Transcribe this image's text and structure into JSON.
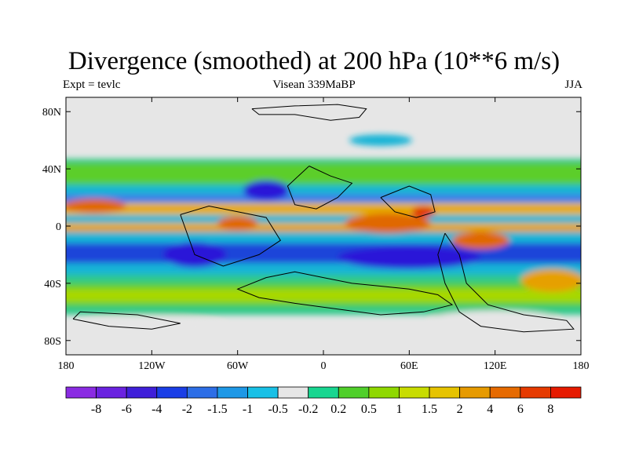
{
  "title": "Divergence (smoothed) at 200 hPa (10**6 m/s)",
  "subtitle_left": "Expt = tevlc",
  "subtitle_center": "Visean 339MaBP",
  "subtitle_right": "JJA",
  "map": {
    "lon_range": [
      -180,
      180
    ],
    "lat_range": [
      -90,
      90
    ],
    "x_ticks": [
      {
        "lon": -180,
        "label": "180"
      },
      {
        "lon": -120,
        "label": "120W"
      },
      {
        "lon": -60,
        "label": "60W"
      },
      {
        "lon": 0,
        "label": "0"
      },
      {
        "lon": 60,
        "label": "60E"
      },
      {
        "lon": 120,
        "label": "120E"
      },
      {
        "lon": 180,
        "label": "180"
      }
    ],
    "y_ticks": [
      {
        "lat": 80,
        "label": "80N"
      },
      {
        "lat": 40,
        "label": "40N"
      },
      {
        "lat": 0,
        "label": "0"
      },
      {
        "lat": -40,
        "label": "40S"
      },
      {
        "lat": -80,
        "label": "80S"
      }
    ],
    "background_color": "#e6e6e6",
    "field_bands": [
      {
        "lat": [
          28,
          47
        ],
        "color": "#2fc98a"
      },
      {
        "lat": [
          30,
          44
        ],
        "color": "#5cce2c"
      },
      {
        "lat": [
          22,
          28
        ],
        "color": "#18b4d6"
      },
      {
        "lat": [
          16,
          22
        ],
        "color": "#3a7de8"
      },
      {
        "lat": [
          8,
          16
        ],
        "color": "#e8c300"
      },
      {
        "lat": [
          10,
          14
        ],
        "color": "#e6a000"
      },
      {
        "lat": [
          2,
          8
        ],
        "color": "#18b4d6"
      },
      {
        "lat": [
          -4,
          2
        ],
        "color": "#e8c300"
      },
      {
        "lat": [
          -4,
          1
        ],
        "color": "#e6a000"
      },
      {
        "lat": [
          -12,
          -4
        ],
        "color": "#18b4d6"
      },
      {
        "lat": [
          -26,
          -12
        ],
        "color": "#1f45d9"
      },
      {
        "lat": [
          -34,
          -26
        ],
        "color": "#18b4d6"
      },
      {
        "lat": [
          -40,
          -34
        ],
        "color": "#2fc98a"
      },
      {
        "lat": [
          -56,
          -40
        ],
        "color": "#5cce2c"
      },
      {
        "lat": [
          -53,
          -44
        ],
        "color": "#a8d800"
      },
      {
        "lat": [
          -62,
          -56
        ],
        "color": "#2fc98a"
      }
    ],
    "field_blobs": [
      {
        "lon": 45,
        "lat": 2,
        "rlon": 30,
        "rlat": 7,
        "color": "#e06800"
      },
      {
        "lon": -60,
        "lat": 2,
        "rlon": 14,
        "rlat": 5,
        "color": "#e06800"
      },
      {
        "lon": -160,
        "lat": 14,
        "rlon": 22,
        "rlat": 5,
        "color": "#e06800"
      },
      {
        "lon": 70,
        "lat": 10,
        "rlon": 8,
        "rlat": 4,
        "color": "#e03800"
      },
      {
        "lon": 110,
        "lat": -10,
        "rlon": 20,
        "rlat": 6,
        "color": "#e06800"
      },
      {
        "lon": 60,
        "lat": -22,
        "rlon": 50,
        "rlat": 8,
        "color": "#2a18d8"
      },
      {
        "lon": -90,
        "lat": -20,
        "rlon": 22,
        "rlat": 9,
        "color": "#2a18d8"
      },
      {
        "lon": -40,
        "lat": 25,
        "rlon": 16,
        "rlat": 7,
        "color": "#2a18d8"
      },
      {
        "lon": 160,
        "lat": -38,
        "rlon": 22,
        "rlat": 8,
        "color": "#e6a000"
      },
      {
        "lon": 40,
        "lat": 60,
        "rlon": 22,
        "rlat": 4,
        "color": "#18b4d6"
      },
      {
        "lon": 120,
        "lat": -65,
        "rlon": 45,
        "rlat": 6,
        "color": "#e6e6e6"
      },
      {
        "lon": -120,
        "lat": -70,
        "rlon": 50,
        "rlat": 7,
        "color": "#e6e6e6"
      }
    ],
    "coastlines": [
      [
        [
          -50,
          82
        ],
        [
          -20,
          84
        ],
        [
          10,
          85
        ],
        [
          30,
          82
        ],
        [
          25,
          76
        ],
        [
          5,
          74
        ],
        [
          -20,
          78
        ],
        [
          -45,
          78
        ],
        [
          -50,
          82
        ]
      ],
      [
        [
          -10,
          42
        ],
        [
          5,
          35
        ],
        [
          20,
          30
        ],
        [
          10,
          20
        ],
        [
          -5,
          12
        ],
        [
          -20,
          15
        ],
        [
          -25,
          28
        ],
        [
          -10,
          42
        ]
      ],
      [
        [
          -100,
          8
        ],
        [
          -80,
          14
        ],
        [
          -60,
          10
        ],
        [
          -40,
          6
        ],
        [
          -30,
          -10
        ],
        [
          -45,
          -20
        ],
        [
          -70,
          -28
        ],
        [
          -90,
          -20
        ],
        [
          -100,
          8
        ]
      ],
      [
        [
          -40,
          -36
        ],
        [
          -20,
          -32
        ],
        [
          0,
          -36
        ],
        [
          20,
          -40
        ],
        [
          40,
          -42
        ],
        [
          60,
          -44
        ],
        [
          80,
          -48
        ],
        [
          90,
          -55
        ],
        [
          70,
          -60
        ],
        [
          40,
          -62
        ],
        [
          10,
          -58
        ],
        [
          -20,
          -54
        ],
        [
          -45,
          -50
        ],
        [
          -60,
          -44
        ],
        [
          -40,
          -36
        ]
      ],
      [
        [
          40,
          20
        ],
        [
          60,
          28
        ],
        [
          75,
          22
        ],
        [
          78,
          10
        ],
        [
          65,
          6
        ],
        [
          50,
          10
        ],
        [
          40,
          20
        ]
      ],
      [
        [
          85,
          -5
        ],
        [
          95,
          -20
        ],
        [
          100,
          -40
        ],
        [
          115,
          -55
        ],
        [
          140,
          -62
        ],
        [
          170,
          -66
        ],
        [
          175,
          -72
        ],
        [
          140,
          -74
        ],
        [
          110,
          -70
        ],
        [
          95,
          -60
        ],
        [
          85,
          -40
        ],
        [
          80,
          -20
        ],
        [
          85,
          -5
        ]
      ],
      [
        [
          -175,
          -65
        ],
        [
          -150,
          -70
        ],
        [
          -120,
          -72
        ],
        [
          -100,
          -68
        ],
        [
          -130,
          -62
        ],
        [
          -170,
          -60
        ],
        [
          -175,
          -65
        ]
      ]
    ]
  },
  "colorbar": {
    "colors": [
      "#8a2be2",
      "#6a22e0",
      "#3f1fd9",
      "#1a3ee6",
      "#2d6ee6",
      "#1e98e6",
      "#18c0e6",
      "#e6e6e6",
      "#18d690",
      "#4fcf2a",
      "#8fd800",
      "#c8dc00",
      "#e6c300",
      "#e69a00",
      "#e66a00",
      "#e63a00",
      "#e61a00"
    ],
    "labels": [
      "-8",
      "-6",
      "-4",
      "-2",
      "-1.5",
      "-1",
      "-0.5",
      "-0.2",
      "0.2",
      "0.5",
      "1",
      "1.5",
      "2",
      "4",
      "6",
      "8"
    ]
  }
}
